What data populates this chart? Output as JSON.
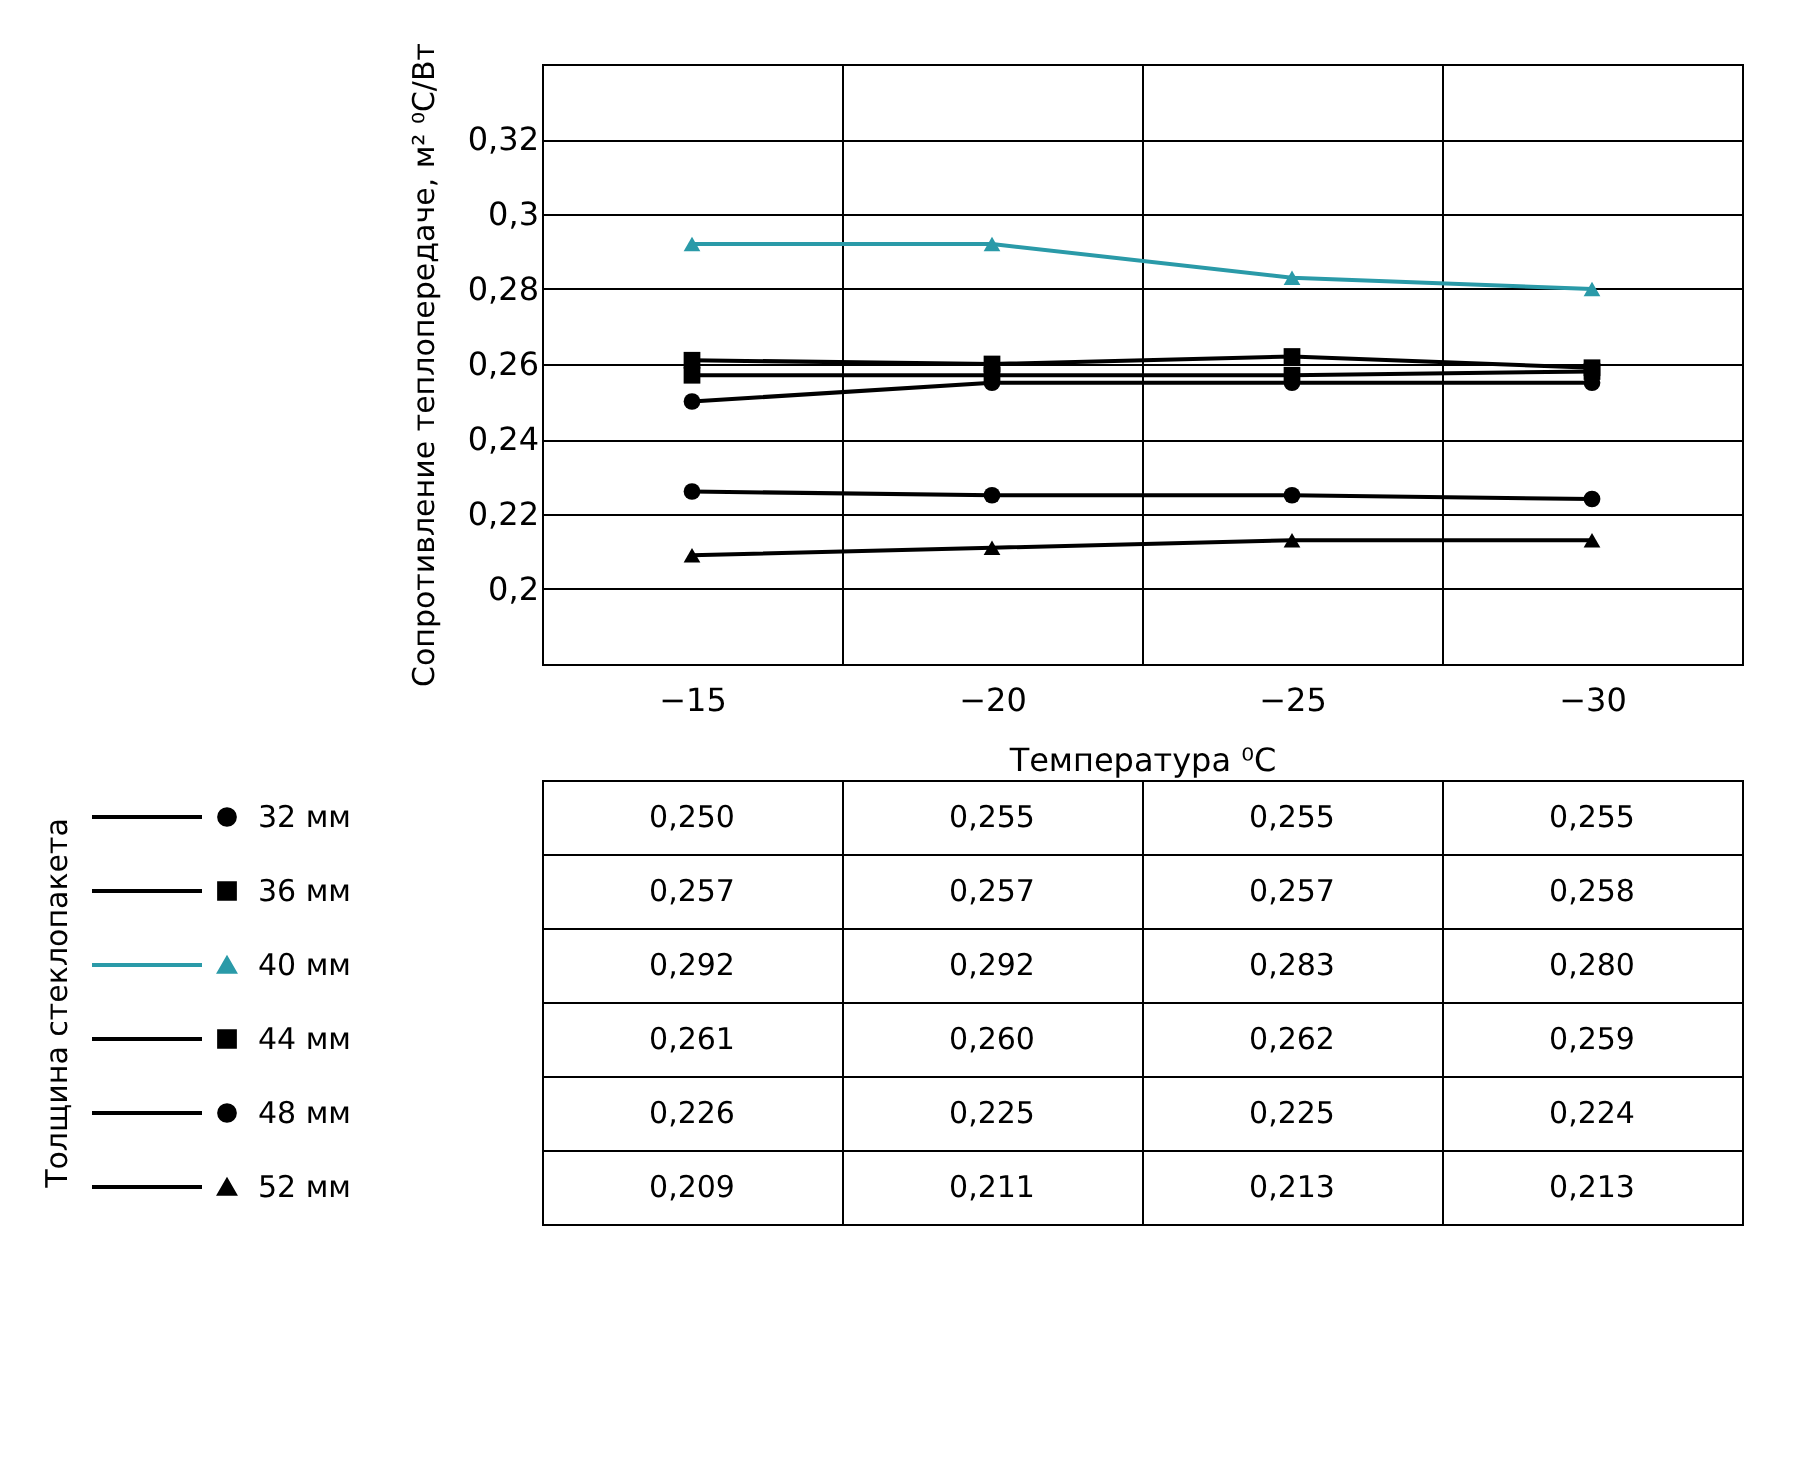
{
  "chart_data": {
    "type": "line",
    "xlabel": "Температура ⁰C",
    "ylabel": "Сопротивление теплопередаче, м² ⁰C/Вт",
    "legend_title": "Толщина стеклопакета",
    "categories": [
      "−15",
      "−20",
      "−25",
      "−30"
    ],
    "ylim": [
      0.18,
      0.34
    ],
    "yticks": [
      {
        "value": 0.2,
        "label": "0,2"
      },
      {
        "value": 0.22,
        "label": "0,22"
      },
      {
        "value": 0.24,
        "label": "0,24"
      },
      {
        "value": 0.26,
        "label": "0,26"
      },
      {
        "value": 0.28,
        "label": "0,28"
      },
      {
        "value": 0.3,
        "label": "0,3"
      },
      {
        "value": 0.32,
        "label": "0,32"
      }
    ],
    "grid": true,
    "legend": "bottom left",
    "series": [
      {
        "name": "32 мм",
        "color": "#000000",
        "marker": "circle",
        "values": [
          0.25,
          0.255,
          0.255,
          0.255
        ],
        "value_labels": [
          "0,250",
          "0,255",
          "0,255",
          "0,255"
        ]
      },
      {
        "name": "36 мм",
        "color": "#000000",
        "marker": "square",
        "values": [
          0.257,
          0.257,
          0.257,
          0.258
        ],
        "value_labels": [
          "0,257",
          "0,257",
          "0,257",
          "0,258"
        ]
      },
      {
        "name": "40 мм",
        "color": "#2a9aa8",
        "marker": "triangle",
        "values": [
          0.292,
          0.292,
          0.283,
          0.28
        ],
        "value_labels": [
          "0,292",
          "0,292",
          "0,283",
          "0,280"
        ]
      },
      {
        "name": "44 мм",
        "color": "#000000",
        "marker": "square",
        "values": [
          0.261,
          0.26,
          0.262,
          0.259
        ],
        "value_labels": [
          "0,261",
          "0,260",
          "0,262",
          "0,259"
        ]
      },
      {
        "name": "48 мм",
        "color": "#000000",
        "marker": "circle",
        "values": [
          0.226,
          0.225,
          0.225,
          0.224
        ],
        "value_labels": [
          "0,226",
          "0,225",
          "0,225",
          "0,224"
        ]
      },
      {
        "name": "52 мм",
        "color": "#000000",
        "marker": "triangle",
        "values": [
          0.209,
          0.211,
          0.213,
          0.213
        ],
        "value_labels": [
          "0,209",
          "0,211",
          "0,213",
          "0,213"
        ]
      }
    ]
  }
}
